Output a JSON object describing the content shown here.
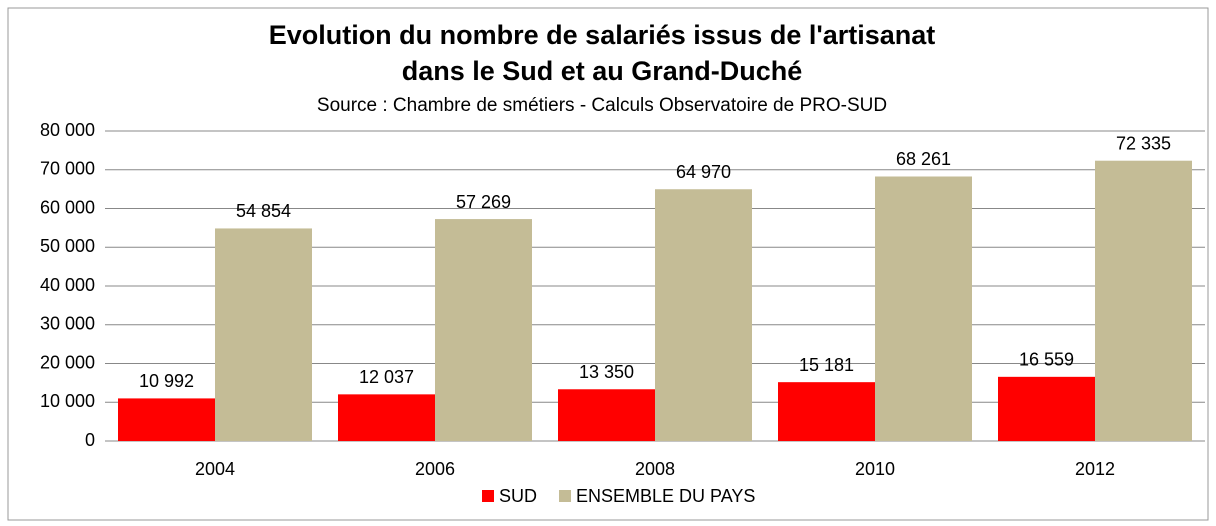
{
  "chart_data": {
    "type": "bar",
    "title": [
      "Evolution du nombre de salariés issus de l'artisanat",
      "dans le Sud et au Grand-Duché"
    ],
    "subtitle": "Source : Chambre de smétiers - Calculs Observatoire de PRO-SUD",
    "categories": [
      "2004",
      "2006",
      "2008",
      "2010",
      "2012"
    ],
    "series": [
      {
        "name": "SUD",
        "color": "#ff0000",
        "values": [
          10992,
          12037,
          13350,
          15181,
          16559
        ],
        "value_labels": [
          "10 992",
          "12 037",
          "13 350",
          "15 181",
          "16 559"
        ]
      },
      {
        "name": "ENSEMBLE DU PAYS",
        "color": "#c4bc96",
        "values": [
          54854,
          57269,
          64970,
          68261,
          72335
        ],
        "value_labels": [
          "54 854",
          "57 269",
          "64 970",
          "68 261",
          "72 335"
        ]
      }
    ],
    "ylim": [
      0,
      80000
    ],
    "yticks": [
      0,
      {
        "value": 10000,
        "label": "10 000"
      },
      {
        "value": 20000,
        "label": "20 000"
      },
      {
        "value": 30000,
        "label": "30 000"
      },
      {
        "value": 40000,
        "label": "40 000"
      },
      {
        "value": 50000,
        "label": "50 000"
      },
      {
        "value": 60000,
        "label": "60 000"
      },
      {
        "value": 70000,
        "label": "70 000"
      },
      {
        "value": 80000,
        "label": "80 000"
      }
    ],
    "grid": true,
    "legend": "bottom"
  }
}
